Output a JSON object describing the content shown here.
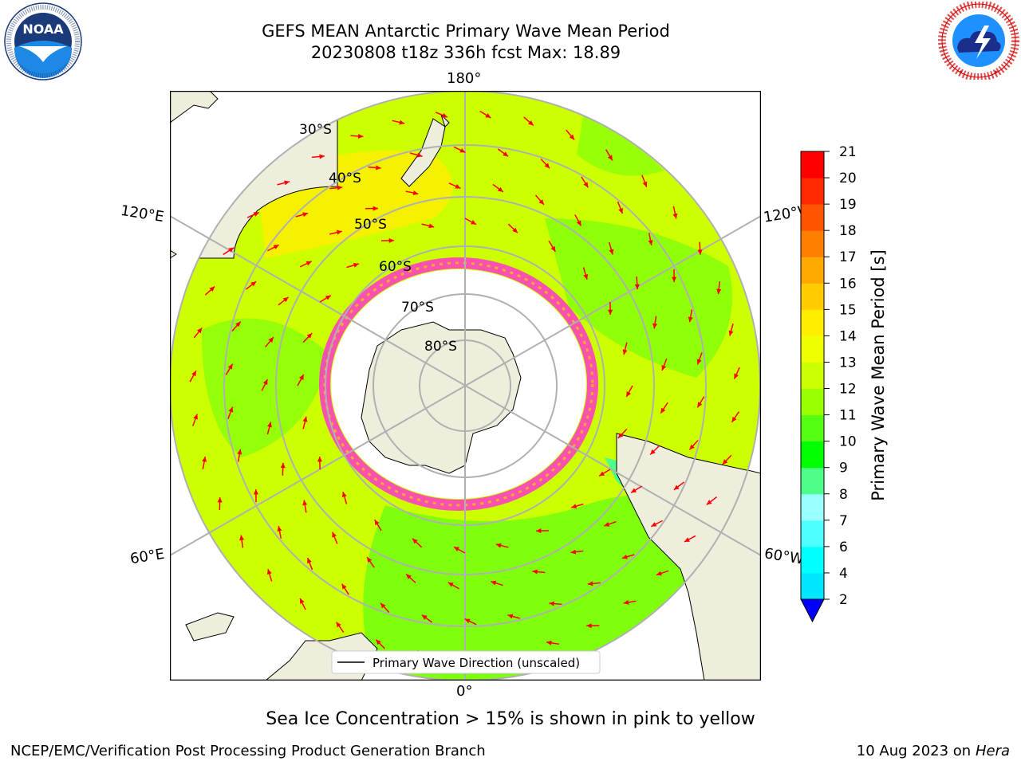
{
  "title_line1": "GEFS MEAN Antarctic Primary Wave Mean Period",
  "title_line2": "20230808 t18z 336h fcst   Max: 18.89",
  "logos": {
    "noaa": {
      "center_text": "NOAA",
      "ring_text": "NATIONAL OCEANIC AND ATMOSPHERIC ADMINISTRATION · U.S. DEPARTMENT OF COMMERCE"
    },
    "nws": {
      "ring_text": "NATIONAL WEATHER SERVICE"
    }
  },
  "map": {
    "projection": "south-polar-stereographic",
    "meridian_labels": {
      "top": "180°",
      "bottom": "0°",
      "upper_left": "120°E",
      "lower_left": "60°E",
      "upper_right": "120°W",
      "lower_right": "60°W"
    },
    "latitude_labels": [
      "30°S",
      "40°S",
      "50°S",
      "60°S",
      "70°S",
      "80°S"
    ],
    "legend_label": "Primary Wave Direction (unscaled)",
    "ocean_color": "#ccff00",
    "land_color": "#efeedc",
    "ice_color": "#ffffff",
    "arrow_color": "#ff0000"
  },
  "colorbar": {
    "label": "Primary Wave Mean Period [s]",
    "ticks": [
      "2",
      "4",
      "6",
      "7",
      "8",
      "9",
      "10",
      "11",
      "12",
      "13",
      "14",
      "15",
      "16",
      "17",
      "18",
      "19",
      "20",
      "21"
    ],
    "colors": [
      "#0078ff",
      "#00e6ff",
      "#00ffff",
      "#4dffff",
      "#99ffff",
      "#4dff88",
      "#00ff00",
      "#55ff11",
      "#99ff00",
      "#ccff00",
      "#eeff00",
      "#ffee00",
      "#ffcc00",
      "#ffa800",
      "#ff7f00",
      "#ff5500",
      "#ff2a00",
      "#ff0000"
    ],
    "extend_color": "#0000ff"
  },
  "caption": "Sea Ice Concentration > 15% is shown in pink to yellow",
  "footer_left": "NCEP/EMC/Verification Post Processing Product Generation Branch",
  "footer_right_date": "10 Aug 2023 on",
  "footer_right_host": "Hera"
}
